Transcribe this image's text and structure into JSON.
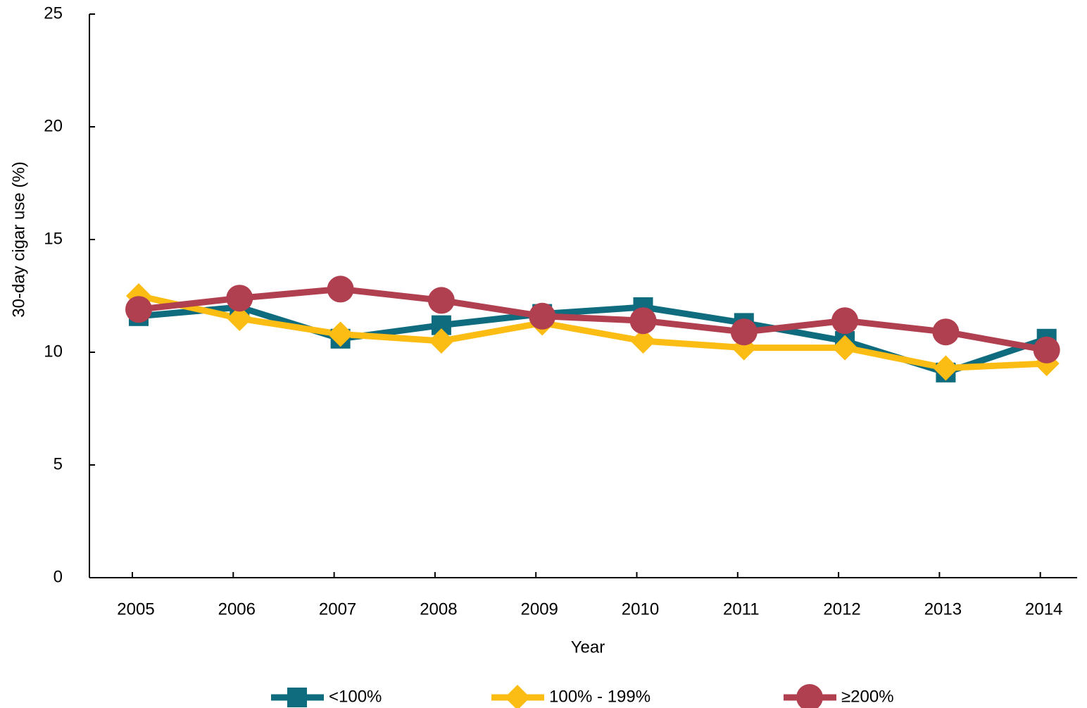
{
  "chart_data": {
    "type": "line",
    "x_label": "Year",
    "y_label": "30-day cigar use (%)",
    "categories": [
      "2005",
      "2006",
      "2007",
      "2008",
      "2009",
      "2010",
      "2011",
      "2012",
      "2013",
      "2014"
    ],
    "series": [
      {
        "name": "<100%",
        "color": "#0f6b7e",
        "marker": "square",
        "values": [
          11.6,
          12.0,
          10.6,
          11.2,
          11.7,
          12.0,
          11.3,
          10.5,
          9.1,
          10.6
        ]
      },
      {
        "name": "100% - 199%",
        "color": "#fbbc13",
        "marker": "diamond",
        "values": [
          12.5,
          11.5,
          10.8,
          10.5,
          11.3,
          10.5,
          10.2,
          10.2,
          9.3,
          9.5
        ]
      },
      {
        "name": "≥200%",
        "color": "#b0404f",
        "marker": "circle",
        "values": [
          11.9,
          12.4,
          12.8,
          12.3,
          11.6,
          11.4,
          10.9,
          11.4,
          10.9,
          10.1
        ]
      }
    ],
    "ylim": [
      0,
      25
    ],
    "yticks": [
      0,
      5,
      10,
      15,
      20,
      25
    ],
    "grid": false,
    "legend": "bottom"
  }
}
